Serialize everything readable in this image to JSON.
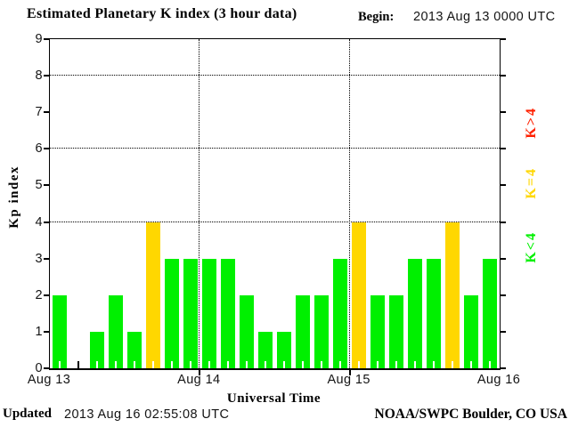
{
  "title": "Estimated Planetary K index (3 hour data)",
  "begin_label": "Begin:",
  "begin_value": "2013 Aug 13 0000 UTC",
  "footer": {
    "updated_label": "Updated",
    "updated_value": "2013 Aug 16 02:55:08 UTC",
    "credit": "NOAA/SWPC Boulder, CO USA"
  },
  "chart_data": {
    "type": "bar",
    "title": "Estimated Planetary K index (3 hour data)",
    "xlabel": "Universal Time",
    "ylabel": "Kp index",
    "ylim": [
      0,
      9
    ],
    "yticks": [
      0,
      1,
      2,
      3,
      4,
      5,
      6,
      7,
      8,
      9
    ],
    "gridlines_y": [
      4,
      6,
      8
    ],
    "grid": "dotted horizontal at 4,6,8 and dotted vertical at day boundaries",
    "hours_per_bar": 3,
    "x_day_labels": [
      "Aug 13",
      "Aug 14",
      "Aug 15",
      "Aug 16"
    ],
    "values": [
      2,
      0,
      1,
      2,
      1,
      4,
      3,
      3,
      3,
      3,
      2,
      1,
      1,
      2,
      2,
      3,
      4,
      2,
      2,
      3,
      3,
      4,
      2,
      3
    ],
    "values_by_day": {
      "Aug 13": [
        2,
        0,
        1,
        2,
        1,
        4,
        3,
        3
      ],
      "Aug 14": [
        3,
        3,
        2,
        1,
        1,
        2,
        2,
        3
      ],
      "Aug 15": [
        4,
        2,
        2,
        3,
        3,
        4,
        2,
        3
      ]
    },
    "colors": {
      "k_lt_4": "#00f000",
      "k_eq_4": "#ffd700",
      "k_gt_4": "#ff2000",
      "axis": "#000000",
      "background": "#ffffff"
    },
    "color_rule": "bar green if K<4, yellow if K=4, red if K>4",
    "legend": [
      {
        "label": "K>4",
        "color": "#ff2000"
      },
      {
        "label": "K=4",
        "color": "#ffd700"
      },
      {
        "label": "K<4",
        "color": "#00f000"
      }
    ],
    "legend_position": "right, rotated 90deg"
  }
}
